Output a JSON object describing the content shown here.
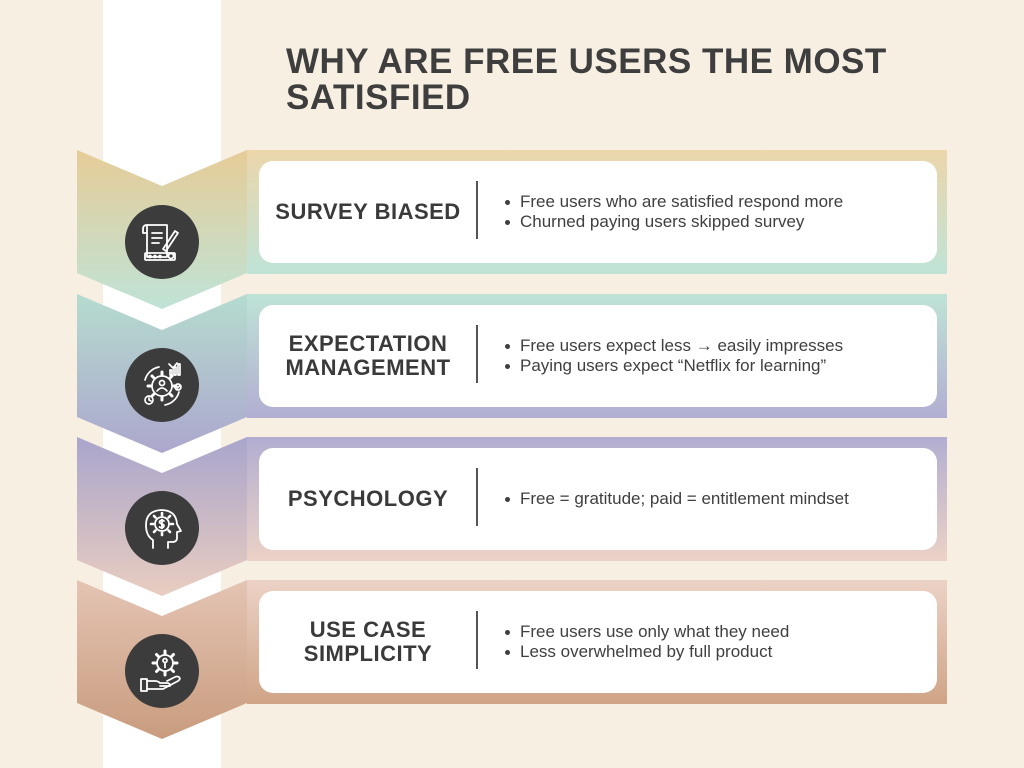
{
  "title": "WHY ARE FREE USERS THE MOST SATISFIED",
  "colors": {
    "background": "#f7efe2",
    "stripe": "#ffffff",
    "icon_circle": "#3c3c3c"
  },
  "items": [
    {
      "title": "SURVEY BIASED",
      "icon": "survey-document-icon",
      "bullets": [
        "Free users who are satisfied respond more",
        "Churned paying users skipped survey"
      ],
      "gradient": [
        "#ecd6ab",
        "#bfe3d6"
      ]
    },
    {
      "title": "EXPECTATION MANAGEMENT",
      "icon": "gear-person-cycle-icon",
      "bullets": [
        "Free users expect less → easily impresses",
        "Paying users expect “Netflix for learning”"
      ],
      "gradient": [
        "#bfe3d6",
        "#b2aed2"
      ]
    },
    {
      "title": "PSYCHOLOGY",
      "icon": "head-mindset-icon",
      "bullets": [
        "Free = gratitude; paid = entitlement mindset"
      ],
      "gradient": [
        "#b2aed2",
        "#ecd2c6"
      ]
    },
    {
      "title": "USE CASE SIMPLICITY",
      "icon": "hand-gear-icon",
      "bullets": [
        "Free users use only what they need",
        "Less overwhelmed by full product"
      ],
      "gradient": [
        "#ecd2c6",
        "#cfa486"
      ]
    }
  ]
}
